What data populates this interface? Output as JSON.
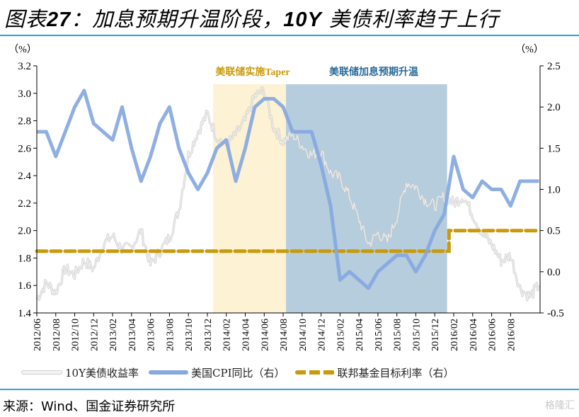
{
  "title": {
    "prefix": "图表",
    "number": "27",
    "text": "：加息预期升温阶段，",
    "bold2": "10Y",
    "text2": " 美债利率趋于上行"
  },
  "source": "来源：Wind、国金证券研究所",
  "watermark": "格隆汇",
  "colors": {
    "cpi": "#86a8df",
    "fed": "#c99a09",
    "yield": "#cfcfcf",
    "taper_band": "#fdf2d3",
    "hike_band": "#b5cddd",
    "rule": "#2aa3d8"
  },
  "chart_data": {
    "type": "line",
    "title": "图表27：加息预期升温阶段，10Y美债利率趋于上行",
    "left_axis": {
      "unit_label": "（%）",
      "range": [
        1.4,
        3.2
      ],
      "ticks": [
        "3.2",
        "3.0",
        "2.8",
        "2.6",
        "2.4",
        "2.2",
        "2.0",
        "1.8",
        "1.6",
        "1.4"
      ]
    },
    "right_axis": {
      "unit_label": "（%）",
      "range": [
        -0.5,
        2.5
      ],
      "ticks": [
        "2.5",
        "2.0",
        "1.5",
        "1.0",
        "0.5",
        "0.0",
        "-0.5"
      ]
    },
    "x_ticks": [
      "2012/06",
      "2012/08",
      "2012/10",
      "2012/12",
      "2013/02",
      "2013/04",
      "2013/06",
      "2013/08",
      "2013/10",
      "2013/12",
      "2014/02",
      "2014/04",
      "2014/06",
      "2014/08",
      "2014/10",
      "2014/12",
      "2015/02",
      "2015/04",
      "2015/06",
      "2015/08",
      "2015/10",
      "2015/12",
      "2016/02",
      "2016/04",
      "2016/06",
      "2016/08"
    ],
    "x_range_months": [
      0,
      53
    ],
    "bands": [
      {
        "label": "美联储实施Taper",
        "start_month": 18.6,
        "end_month": 26.3
      },
      {
        "label": "美联储加息预期升温",
        "start_month": 26.3,
        "end_month": 43.3
      }
    ],
    "legend": [
      "10Y美债收益率",
      "美国CPI同比（右）",
      "联邦基金目标利率（右）"
    ],
    "series": [
      {
        "name": "10Y美债收益率",
        "axis": "left",
        "x_months": [
          0,
          1,
          2,
          3,
          4,
          5,
          6,
          7,
          8,
          9,
          10,
          11,
          12,
          13,
          14,
          15,
          16,
          17,
          18,
          19,
          20,
          21,
          22,
          23,
          24,
          25,
          26,
          27,
          28,
          29,
          30,
          31,
          32,
          33,
          34,
          35,
          36,
          37,
          38,
          39,
          40,
          41,
          42,
          43,
          44,
          45,
          46,
          47,
          48,
          49,
          50,
          51,
          52,
          53
        ],
        "values": [
          1.5,
          1.62,
          1.55,
          1.72,
          1.68,
          1.78,
          1.72,
          1.9,
          1.96,
          1.86,
          1.88,
          2.0,
          1.75,
          1.85,
          1.95,
          2.15,
          2.55,
          2.72,
          2.85,
          2.68,
          2.62,
          2.7,
          2.8,
          2.98,
          3.02,
          2.75,
          2.65,
          2.7,
          2.62,
          2.55,
          2.58,
          2.42,
          2.38,
          2.25,
          2.08,
          1.9,
          1.98,
          1.92,
          2.1,
          2.35,
          2.32,
          2.22,
          2.18,
          2.25,
          2.2,
          2.25,
          2.12,
          1.98,
          1.9,
          1.78,
          1.82,
          1.58,
          1.52,
          1.6
        ]
      },
      {
        "name": "美国CPI同比（右）",
        "axis": "right",
        "x_months": [
          0,
          1,
          2,
          3,
          4,
          5,
          6,
          7,
          8,
          9,
          10,
          11,
          12,
          13,
          14,
          15,
          16,
          17,
          18,
          19,
          20,
          21,
          22,
          23,
          24,
          25,
          26,
          27,
          28,
          29,
          30,
          31,
          32,
          33,
          34,
          35,
          36,
          37,
          38,
          39,
          40,
          41,
          42,
          43,
          44,
          45,
          46,
          47,
          48,
          49,
          50,
          51,
          52,
          53
        ],
        "values": [
          1.7,
          1.7,
          1.4,
          1.7,
          2.0,
          2.2,
          1.8,
          1.7,
          1.6,
          2.0,
          1.5,
          1.1,
          1.4,
          1.8,
          2.0,
          1.5,
          1.2,
          1.0,
          1.2,
          1.5,
          1.6,
          1.1,
          1.5,
          2.0,
          2.1,
          2.1,
          2.0,
          1.7,
          1.7,
          1.7,
          1.3,
          0.8,
          -0.1,
          0.0,
          -0.1,
          -0.2,
          0.0,
          0.1,
          0.2,
          0.2,
          0.0,
          0.2,
          0.5,
          0.7,
          1.4,
          1.0,
          0.9,
          1.1,
          1.0,
          1.0,
          0.8,
          1.1,
          1.1,
          1.1
        ]
      },
      {
        "name": "联邦基金目标利率（右）",
        "axis": "right",
        "x_months": [
          0,
          43.5,
          43.5,
          53
        ],
        "values": [
          0.25,
          0.25,
          0.5,
          0.5
        ]
      }
    ]
  }
}
